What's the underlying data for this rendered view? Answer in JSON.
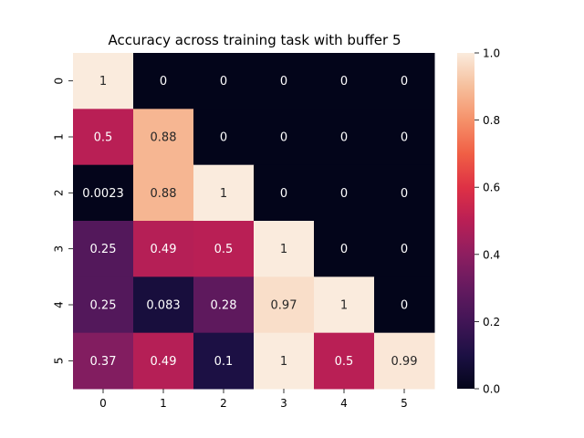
{
  "chart_data": {
    "type": "heatmap",
    "title": "Accuracy across training task with buffer 5",
    "x_categories": [
      "0",
      "1",
      "2",
      "3",
      "4",
      "5"
    ],
    "y_categories": [
      "0",
      "1",
      "2",
      "3",
      "4",
      "5"
    ],
    "values": [
      [
        1,
        0,
        0,
        0,
        0,
        0
      ],
      [
        0.5,
        0.88,
        0,
        0,
        0,
        0
      ],
      [
        0.0023,
        0.88,
        1,
        0,
        0,
        0
      ],
      [
        0.25,
        0.49,
        0.5,
        1,
        0,
        0
      ],
      [
        0.25,
        0.083,
        0.28,
        0.97,
        1,
        0
      ],
      [
        0.37,
        0.49,
        0.1,
        1,
        0.5,
        0.99
      ]
    ],
    "cell_labels": [
      [
        "1",
        "0",
        "0",
        "0",
        "0",
        "0"
      ],
      [
        "0.5",
        "0.88",
        "0",
        "0",
        "0",
        "0"
      ],
      [
        "0.0023",
        "0.88",
        "1",
        "0",
        "0",
        "0"
      ],
      [
        "0.25",
        "0.49",
        "0.5",
        "1",
        "0",
        "0"
      ],
      [
        "0.25",
        "0.083",
        "0.28",
        "0.97",
        "1",
        "0"
      ],
      [
        "0.37",
        "0.49",
        "0.1",
        "1",
        "0.5",
        "0.99"
      ]
    ],
    "colorbar": {
      "range": [
        0.0,
        1.0
      ],
      "ticks": [
        "0.0",
        "0.2",
        "0.4",
        "0.6",
        "0.8",
        "1.0"
      ],
      "colormap": "rocket"
    }
  }
}
